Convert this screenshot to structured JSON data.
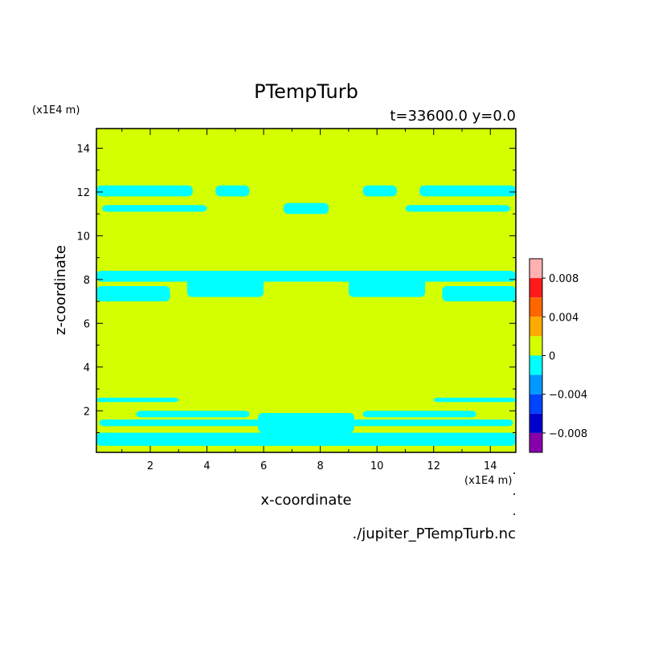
{
  "chart_data": {
    "type": "heatmap",
    "title": "PTempTurb",
    "subtitle": "t=33600.0 y=0.0",
    "xlabel": "x-coordinate",
    "ylabel": "z-coordinate",
    "x_unit": "(x1E4 m)",
    "y_unit": "(x1E4 m)",
    "xlim": [
      0.1,
      14.9
    ],
    "ylim": [
      0.1,
      14.9
    ],
    "xticks": [
      2,
      4,
      6,
      8,
      10,
      12,
      14
    ],
    "yticks": [
      2,
      4,
      6,
      8,
      10,
      12,
      14
    ],
    "source_file": "./jupiter_PTempTurb.nc",
    "background_level_color": "#d4ff00",
    "negative_band_color": "#00ffff",
    "colorbar": {
      "ticks": [
        {
          "value": 0.008,
          "label": "0.008"
        },
        {
          "value": 0.004,
          "label": "0.004"
        },
        {
          "value": 0,
          "label": "0"
        },
        {
          "value": -0.004,
          "label": "−0.004"
        },
        {
          "value": -0.008,
          "label": "−0.008"
        }
      ],
      "levels": [
        {
          "from": 0.008,
          "to": 0.01,
          "color": "#ffb0b0"
        },
        {
          "from": 0.006,
          "to": 0.008,
          "color": "#ff1a1a"
        },
        {
          "from": 0.004,
          "to": 0.006,
          "color": "#ff6600"
        },
        {
          "from": 0.002,
          "to": 0.004,
          "color": "#ffaa00"
        },
        {
          "from": 0.0,
          "to": 0.002,
          "color": "#d4ff00"
        },
        {
          "from": -0.002,
          "to": 0.0,
          "color": "#00ffff"
        },
        {
          "from": -0.004,
          "to": -0.002,
          "color": "#0099ff"
        },
        {
          "from": -0.006,
          "to": -0.004,
          "color": "#0044ff"
        },
        {
          "from": -0.008,
          "to": -0.006,
          "color": "#0000cc"
        },
        {
          "from": -0.01,
          "to": -0.008,
          "color": "#8800aa"
        }
      ]
    },
    "negative_regions": [
      {
        "x": [
          0.1,
          14.9
        ],
        "z": [
          0.4,
          1.0
        ]
      },
      {
        "x": [
          0.2,
          14.8
        ],
        "z": [
          1.3,
          1.6
        ]
      },
      {
        "x": [
          1.5,
          5.5
        ],
        "z": [
          1.7,
          2.0
        ]
      },
      {
        "x": [
          9.5,
          13.5
        ],
        "z": [
          1.7,
          2.0
        ]
      },
      {
        "x": [
          0.1,
          3.0
        ],
        "z": [
          2.4,
          2.6
        ]
      },
      {
        "x": [
          12.0,
          14.9
        ],
        "z": [
          2.4,
          2.6
        ]
      },
      {
        "x": [
          5.8,
          9.2
        ],
        "z": [
          1.0,
          1.9
        ]
      },
      {
        "x": [
          0.1,
          14.9
        ],
        "z": [
          7.9,
          8.4
        ]
      },
      {
        "x": [
          3.3,
          6.0
        ],
        "z": [
          7.2,
          8.4
        ]
      },
      {
        "x": [
          9.0,
          11.7
        ],
        "z": [
          7.2,
          8.4
        ]
      },
      {
        "x": [
          0.1,
          2.7
        ],
        "z": [
          7.0,
          7.7
        ]
      },
      {
        "x": [
          12.3,
          14.9
        ],
        "z": [
          7.0,
          7.7
        ]
      },
      {
        "x": [
          0.3,
          4.0
        ],
        "z": [
          11.1,
          11.4
        ]
      },
      {
        "x": [
          11.0,
          14.7
        ],
        "z": [
          11.1,
          11.4
        ]
      },
      {
        "x": [
          0.1,
          3.5
        ],
        "z": [
          11.8,
          12.3
        ]
      },
      {
        "x": [
          11.5,
          14.9
        ],
        "z": [
          11.8,
          12.3
        ]
      },
      {
        "x": [
          4.3,
          5.5
        ],
        "z": [
          11.8,
          12.3
        ]
      },
      {
        "x": [
          9.5,
          10.7
        ],
        "z": [
          11.8,
          12.3
        ]
      },
      {
        "x": [
          6.7,
          8.3
        ],
        "z": [
          11.0,
          11.5
        ]
      }
    ]
  }
}
